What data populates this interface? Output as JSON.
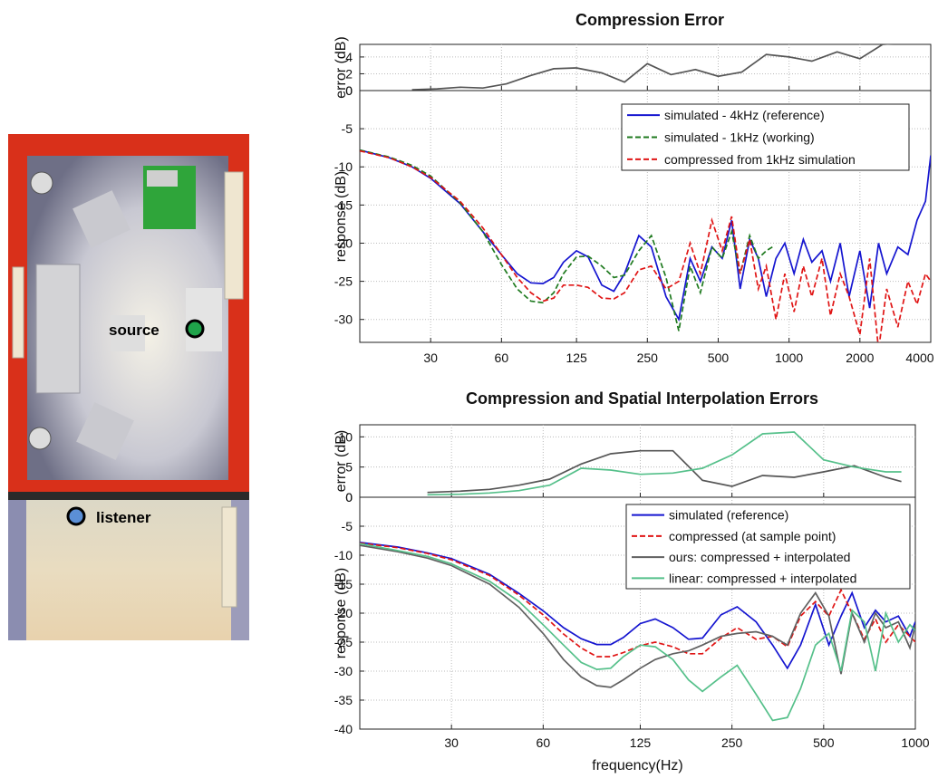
{
  "room": {
    "source_label": "source",
    "listener_label": "listener",
    "colors": {
      "source": "#1fa34a",
      "listener": "#5b8fd6",
      "wall": "#d9301a"
    }
  },
  "chart_data": [
    {
      "type": "line",
      "title": "Compression Error",
      "xscale": "log",
      "xticks": [
        30,
        60,
        125,
        250,
        500,
        1000,
        2000,
        4000
      ],
      "xticklabels": [
        "30",
        "60",
        "125",
        "250",
        "500",
        "1000",
        "2000",
        "4000"
      ],
      "xlim": [
        15,
        4000
      ],
      "legend_position": "top-right",
      "grid": true,
      "error_panel": {
        "ylabel": "error (dB)",
        "ylim": [
          0,
          5.5
        ],
        "yticks": [
          0,
          2,
          4
        ],
        "yticklabels": [
          "0",
          "2",
          "4"
        ],
        "series": [
          {
            "color": "#555555",
            "x": [
              25,
              32,
              40,
              50,
              63,
              80,
              100,
              125,
              160,
              200,
              250,
              315,
              400,
              500,
              630,
              800,
              1000,
              1250,
              1600,
              2000,
              2500,
              3150,
              4000
            ],
            "y": [
              0.1,
              0.2,
              0.4,
              0.3,
              0.8,
              1.8,
              2.6,
              2.7,
              2.1,
              1.0,
              3.2,
              1.9,
              2.5,
              1.7,
              2.2,
              4.3,
              4.0,
              3.5,
              4.6,
              3.8,
              5.5,
              5.7,
              6.0
            ]
          }
        ]
      },
      "response_panel": {
        "ylabel": "response (dB)",
        "ylim": [
          -33,
          0
        ],
        "yticks": [
          0,
          -5,
          -10,
          -15,
          -20,
          -25,
          -30
        ],
        "yticklabels": [
          "0",
          "-5",
          "-10",
          "-15",
          "-20",
          "-25",
          "-30"
        ],
        "series": [
          {
            "name": "simulated - 4kHz (reference)",
            "color": "#1515d0",
            "dash": "",
            "x": [
              15,
              20,
              25,
              30,
              40,
              50,
              60,
              70,
              80,
              90,
              100,
              110,
              125,
              140,
              160,
              180,
              200,
              230,
              260,
              300,
              340,
              380,
              420,
              470,
              520,
              570,
              620,
              680,
              740,
              800,
              880,
              960,
              1050,
              1150,
              1250,
              1380,
              1500,
              1650,
              1800,
              2000,
              2200,
              2400,
              2600,
              2900,
              3200,
              3500,
              3800,
              4000
            ],
            "y": [
              -7.8,
              -8.8,
              -10,
              -11.5,
              -14.8,
              -18.5,
              -21.5,
              -24,
              -25.2,
              -25.3,
              -24.5,
              -22.5,
              -21.0,
              -21.8,
              -25.5,
              -26.3,
              -24.0,
              -19.0,
              -20.5,
              -27.0,
              -30.0,
              -22.0,
              -25.0,
              -20.5,
              -22.0,
              -17.0,
              -26.0,
              -19.5,
              -22.0,
              -27.0,
              -22.0,
              -20.0,
              -24.0,
              -19.5,
              -22.5,
              -21.0,
              -25.0,
              -20.0,
              -27.0,
              -21.0,
              -28.5,
              -20.0,
              -24.0,
              -20.5,
              -21.5,
              -17.0,
              -14.5,
              -8.5
            ]
          },
          {
            "name": "simulated - 1kHz (working)",
            "color": "#1f7a1f",
            "dash": "6 3",
            "x": [
              15,
              20,
              25,
              30,
              40,
              50,
              60,
              70,
              80,
              90,
              100,
              110,
              125,
              140,
              160,
              180,
              200,
              230,
              260,
              300,
              340,
              380,
              420,
              470,
              520,
              570,
              620,
              680,
              740,
              800,
              850
            ],
            "y": [
              -7.8,
              -8.7,
              -9.8,
              -11.2,
              -14.7,
              -18.5,
              -22.8,
              -26.0,
              -27.6,
              -27.8,
              -26.5,
              -24.0,
              -21.8,
              -21.7,
              -23.0,
              -24.5,
              -24.2,
              -21.0,
              -19.0,
              -24.5,
              -31.5,
              -23.0,
              -26.5,
              -20.5,
              -22.0,
              -18.5,
              -24.0,
              -19.0,
              -22.0,
              -21.0,
              -20.5
            ]
          },
          {
            "name": "compressed from 1kHz simulation",
            "color": "#e01515",
            "dash": "6 3",
            "x": [
              15,
              20,
              25,
              30,
              40,
              50,
              60,
              70,
              80,
              90,
              100,
              110,
              125,
              140,
              160,
              180,
              200,
              230,
              260,
              300,
              340,
              380,
              420,
              470,
              520,
              570,
              620,
              680,
              740,
              800,
              880,
              960,
              1050,
              1150,
              1250,
              1380,
              1500,
              1650,
              1800,
              2000,
              2200,
              2400,
              2600,
              2900,
              3200,
              3500,
              3800,
              4000
            ],
            "y": [
              -7.9,
              -8.8,
              -10,
              -11.4,
              -14.5,
              -18.0,
              -21.5,
              -24.5,
              -26.5,
              -27.6,
              -27.2,
              -25.5,
              -25.5,
              -25.8,
              -27.2,
              -27.3,
              -26.5,
              -23.5,
              -23.0,
              -26.0,
              -25.0,
              -20.0,
              -24.0,
              -17.0,
              -21.0,
              -16.5,
              -24.0,
              -19.5,
              -26.0,
              -23.0,
              -30.0,
              -24.0,
              -29.0,
              -23.0,
              -27.0,
              -22.0,
              -29.5,
              -24.0,
              -27.0,
              -32.0,
              -22.0,
              -34.0,
              -26.0,
              -31.0,
              -25.0,
              -28.0,
              -24.0,
              -25.0
            ]
          }
        ]
      }
    },
    {
      "type": "line",
      "title": "Compression and Spatial Interpolation Errors",
      "xlabel": "frequency(Hz)",
      "xscale": "log",
      "xticks": [
        30,
        60,
        125,
        250,
        500,
        1000
      ],
      "xticklabels": [
        "30",
        "60",
        "125",
        "250",
        "500",
        "1000"
      ],
      "xlim": [
        15,
        1000
      ],
      "legend_position": "middle-right",
      "grid": true,
      "error_panel": {
        "ylabel": "error (dB)",
        "ylim": [
          0,
          12
        ],
        "yticks": [
          0,
          5,
          10
        ],
        "yticklabels": [
          "0",
          "5",
          "10"
        ],
        "series": [
          {
            "color": "#555555",
            "x": [
              25,
              32,
              40,
              50,
              63,
              80,
              100,
              125,
              160,
              200,
              250,
              315,
              400,
              500,
              630,
              800,
              900
            ],
            "y": [
              0.8,
              1.0,
              1.3,
              2.0,
              3.0,
              5.5,
              7.2,
              7.7,
              7.7,
              2.8,
              1.8,
              3.6,
              3.3,
              4.2,
              5.2,
              3.3,
              2.6
            ]
          },
          {
            "color": "#55c08a",
            "x": [
              25,
              32,
              40,
              50,
              63,
              80,
              100,
              125,
              160,
              200,
              250,
              315,
              400,
              500,
              630,
              800,
              900
            ],
            "y": [
              0.4,
              0.5,
              0.7,
              1.1,
              2.0,
              4.8,
              4.5,
              3.8,
              4.0,
              4.8,
              7.0,
              10.5,
              10.8,
              6.2,
              5.0,
              4.2,
              4.2
            ]
          }
        ]
      },
      "response_panel": {
        "ylabel": "response (dB)",
        "ylim": [
          -40,
          0
        ],
        "yticks": [
          0,
          -5,
          -10,
          -15,
          -20,
          -25,
          -30,
          -35,
          -40
        ],
        "yticklabels": [
          "0",
          "-5",
          "-10",
          "-15",
          "-20",
          "-25",
          "-30",
          "-35",
          "-40"
        ],
        "series": [
          {
            "name": "simulated (reference)",
            "color": "#1515d0",
            "dash": "",
            "x": [
              15,
              20,
              25,
              30,
              40,
              50,
              60,
              70,
              80,
              90,
              100,
              110,
              125,
              140,
              160,
              180,
              200,
              230,
              260,
              300,
              340,
              380,
              420,
              470,
              520,
              570,
              620,
              680,
              740,
              800,
              880,
              960,
              1000
            ],
            "y": [
              -7.8,
              -8.6,
              -9.6,
              -10.6,
              -13.3,
              -16.6,
              -19.6,
              -22.5,
              -24.4,
              -25.4,
              -25.4,
              -24.2,
              -21.8,
              -21.0,
              -22.5,
              -24.5,
              -24.3,
              -20.3,
              -18.9,
              -21.5,
              -25.5,
              -29.5,
              -25.5,
              -18.5,
              -25.5,
              -20.5,
              -16.5,
              -22.5,
              -19.5,
              -21.5,
              -20.5,
              -24.0,
              -21.5
            ]
          },
          {
            "name": "compressed (at sample point)",
            "color": "#e01515",
            "dash": "6 3",
            "x": [
              15,
              20,
              25,
              30,
              40,
              50,
              60,
              70,
              80,
              90,
              100,
              110,
              125,
              140,
              160,
              180,
              200,
              230,
              260,
              300,
              340,
              380,
              420,
              470,
              520,
              570,
              620,
              680,
              740,
              800,
              880,
              960,
              1000
            ],
            "y": [
              -7.9,
              -8.7,
              -9.7,
              -10.8,
              -13.5,
              -16.9,
              -20.3,
              -23.6,
              -26.0,
              -27.5,
              -27.5,
              -26.8,
              -25.6,
              -25.0,
              -25.8,
              -27.0,
              -27.0,
              -24.3,
              -22.5,
              -24.5,
              -24.0,
              -25.8,
              -20.5,
              -18.0,
              -20.5,
              -16.0,
              -20.0,
              -24.5,
              -21.0,
              -25.0,
              -22.0,
              -24.0,
              -25.0
            ]
          },
          {
            "name": "ours: compressed + interpolated",
            "color": "#606060",
            "dash": "",
            "x": [
              15,
              20,
              25,
              30,
              40,
              50,
              60,
              70,
              80,
              90,
              100,
              110,
              125,
              140,
              160,
              180,
              200,
              230,
              260,
              300,
              340,
              380,
              420,
              470,
              520,
              570,
              620,
              680,
              740,
              800,
              880,
              960,
              1000
            ],
            "y": [
              -8.3,
              -9.4,
              -10.5,
              -11.8,
              -15.0,
              -19.0,
              -23.5,
              -28.0,
              -31.0,
              -32.5,
              -32.8,
              -31.5,
              -29.5,
              -28.0,
              -27.0,
              -26.5,
              -25.5,
              -24.0,
              -23.5,
              -23.2,
              -24.0,
              -25.5,
              -20.0,
              -16.5,
              -20.5,
              -30.5,
              -20.0,
              -25.0,
              -20.0,
              -22.5,
              -21.5,
              -26.0,
              -22.0
            ]
          },
          {
            "name": "linear: compressed + interpolated",
            "color": "#55c08a",
            "dash": "",
            "x": [
              15,
              20,
              25,
              30,
              40,
              50,
              60,
              70,
              80,
              90,
              100,
              110,
              125,
              140,
              160,
              180,
              200,
              230,
              260,
              300,
              340,
              380,
              420,
              470,
              520,
              570,
              620,
              680,
              740,
              800,
              880,
              960,
              1000
            ],
            "y": [
              -8.0,
              -9.2,
              -10.2,
              -11.5,
              -14.5,
              -18.0,
              -22.0,
              -25.5,
              -28.5,
              -29.7,
              -29.5,
              -27.5,
              -25.5,
              -25.8,
              -28.0,
              -31.5,
              -33.5,
              -31.0,
              -29.0,
              -34.0,
              -38.5,
              -38.0,
              -33.0,
              -25.5,
              -23.5,
              -30.0,
              -19.5,
              -21.5,
              -30.0,
              -20.0,
              -25.0,
              -22.0,
              -23.0
            ]
          }
        ]
      }
    }
  ]
}
